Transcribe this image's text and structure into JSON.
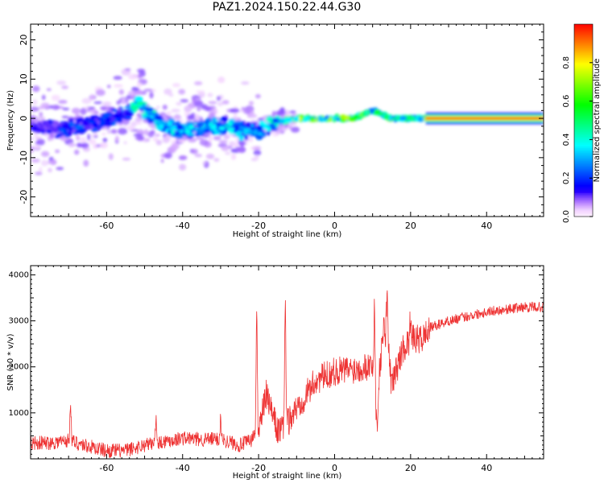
{
  "title": "PAZ1.2024.150.22.44.G30",
  "chart_data": [
    {
      "type": "heatmap",
      "xlabel": "Height of straight line (km)",
      "ylabel": "Frequency (Hz)",
      "xlim": [
        -80,
        55
      ],
      "ylim": [
        -25,
        24
      ],
      "xticks": [
        -60,
        -40,
        -20,
        0,
        20,
        40
      ],
      "yticks": [
        -20,
        -10,
        0,
        10,
        20
      ],
      "colorbar": {
        "label": "Normalized spectral amplitude",
        "range": [
          0.0,
          1.0
        ],
        "ticks": [
          "0.0",
          "0.2",
          "0.4",
          "0.6",
          "0.8"
        ],
        "colormap": "gist_rainbow (white → purple → blue → cyan → green → yellow → red → magenta)"
      },
      "ridge": {
        "description": "frequency trace of the dominant spectral component vs height",
        "x": [
          -78,
          -70,
          -62,
          -55,
          -52,
          -45,
          -40,
          -35,
          -30,
          -25,
          -20,
          -15,
          -10,
          -5,
          0,
          5,
          10,
          15,
          20,
          25,
          40,
          55
        ],
        "freq": [
          -2,
          -3,
          -1,
          1,
          4,
          -2,
          -3,
          -2,
          -2,
          -3,
          -3,
          -1,
          0,
          0,
          0,
          0,
          2,
          0,
          0,
          0,
          0,
          0
        ],
        "amplitude": [
          0.15,
          0.25,
          0.2,
          0.25,
          0.45,
          0.4,
          0.35,
          0.35,
          0.4,
          0.35,
          0.3,
          0.5,
          0.75,
          0.65,
          0.7,
          0.7,
          0.55,
          0.6,
          0.6,
          0.85,
          0.95,
          0.95
        ]
      }
    },
    {
      "type": "line",
      "xlabel": "Height of straight line (km)",
      "ylabel": "SNR (10 * v/v)",
      "xlim": [
        -80,
        55
      ],
      "ylim": [
        0,
        4200
      ],
      "xticks": [
        -60,
        -40,
        -20,
        0,
        20,
        40
      ],
      "yticks": [
        1000,
        2000,
        3000,
        4000
      ],
      "series": [
        {
          "color": "#ee3333",
          "x": [
            -80,
            -75,
            -70,
            -65,
            -60,
            -55,
            -50,
            -45,
            -40,
            -35,
            -30,
            -25,
            -22,
            -20,
            -18,
            -15,
            -13,
            -10,
            -5,
            0,
            5,
            10,
            11,
            12,
            13,
            14,
            15,
            18,
            20,
            23,
            25,
            30,
            35,
            40,
            45,
            50,
            55
          ],
          "y": [
            350,
            350,
            400,
            280,
            180,
            180,
            300,
            380,
            450,
            420,
            430,
            300,
            400,
            650,
            1400,
            600,
            700,
            1100,
            1700,
            1900,
            1950,
            2050,
            1000,
            2100,
            2900,
            2500,
            1600,
            2400,
            2600,
            2600,
            2850,
            3000,
            3100,
            3200,
            3250,
            3300,
            3300
          ],
          "spikes": [
            {
              "x": -69.5,
              "y": 1450
            },
            {
              "x": -47,
              "y": 1100
            },
            {
              "x": -30,
              "y": 950
            },
            {
              "x": -20.5,
              "y": 3600
            },
            {
              "x": -13,
              "y": 4200
            },
            {
              "x": 10.5,
              "y": 3700
            },
            {
              "x": 11.3,
              "y": 450
            },
            {
              "x": 13.8,
              "y": 3850
            },
            {
              "x": 20,
              "y": 3300
            }
          ]
        }
      ]
    }
  ]
}
